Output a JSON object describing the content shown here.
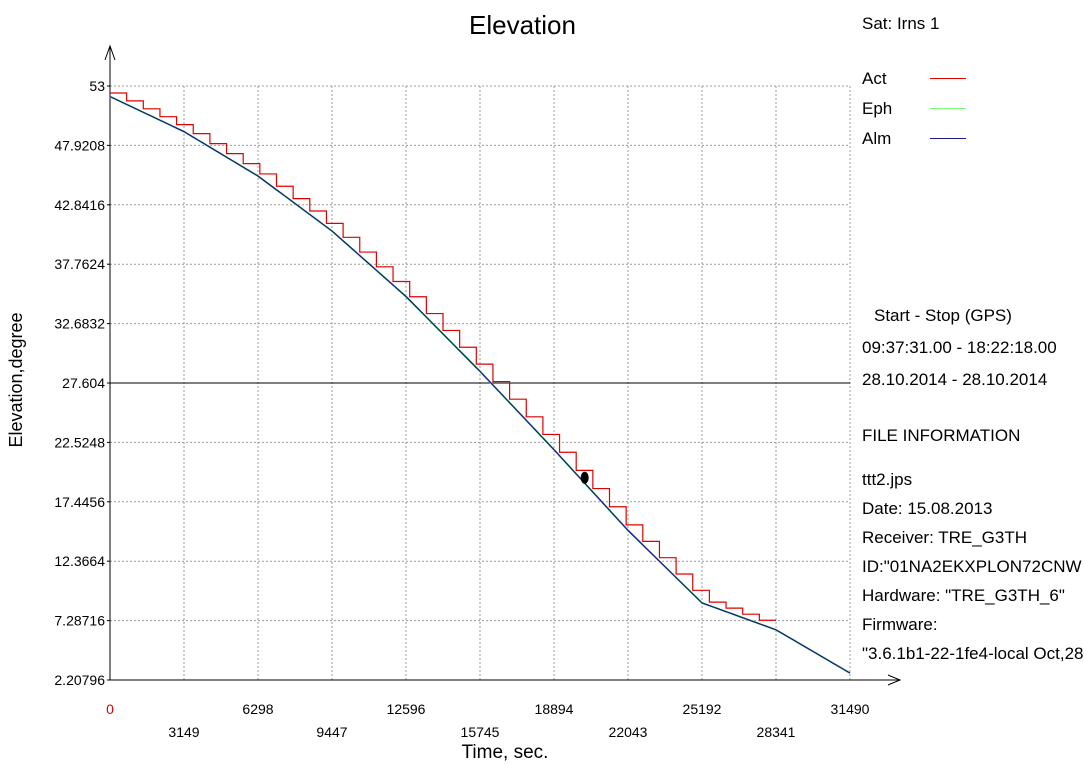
{
  "chart_data": {
    "type": "line",
    "title": "Elevation",
    "xlabel": "Time, sec.",
    "ylabel": "Elevation,degree",
    "xlim": [
      0,
      31490
    ],
    "ylim": [
      2.20796,
      53
    ],
    "grid": true,
    "legend_position": "top-right",
    "x_tick_labels": [
      "0",
      "3149",
      "6298",
      "9447",
      "12596",
      "15745",
      "18894",
      "22043",
      "25192",
      "28341",
      "31490"
    ],
    "y_tick_labels": [
      "53",
      "47.9208",
      "42.8416",
      "37.7624",
      "32.6832",
      "27.604",
      "22.5248",
      "17.4456",
      "12.3664",
      "7.28716",
      "2.20796"
    ],
    "series": [
      {
        "name": "Act",
        "color": "#e00000",
        "style": "step",
        "x": [
          0,
          28341
        ],
        "y": [
          52.3,
          7.2
        ]
      },
      {
        "name": "Eph",
        "color": "#7cff7c",
        "x": [
          0,
          3149,
          6298,
          9447,
          12596,
          15745,
          18894,
          22043,
          25192,
          28341,
          31490
        ],
        "y": [
          52.1,
          49.1,
          45.3,
          40.6,
          35.0,
          28.6,
          21.9,
          15.0,
          8.8,
          6.5,
          2.8
        ]
      },
      {
        "name": "Alm",
        "color": "#1a1a8c",
        "x": [
          0,
          3149,
          6298,
          9447,
          12596,
          15745,
          18894,
          22043,
          25192,
          28341,
          31490
        ],
        "y": [
          52.1,
          49.1,
          45.3,
          40.6,
          35.0,
          28.6,
          21.9,
          15.0,
          8.8,
          6.5,
          2.8
        ]
      }
    ],
    "marker": {
      "x": 20200,
      "y": 19.5
    }
  },
  "sat_label": "Sat: Irns   1",
  "legend": [
    {
      "label": "Act",
      "color": "#e00000"
    },
    {
      "label": "Eph",
      "color": "#7cff7c"
    },
    {
      "label": "Alm",
      "color": "#1a1a8c"
    }
  ],
  "start_stop": {
    "heading": "Start  -  Stop  (GPS)",
    "time_range": "09:37:31.00 - 18:22:18.00",
    "date_range": "28.10.2014 - 28.10.2014"
  },
  "file_info": {
    "heading": "FILE INFORMATION",
    "filename": "ttt2.jps",
    "date": "Date: 15.08.2013",
    "receiver": "Receiver: TRE_G3TH",
    "id": "ID:\"01NA2EKXPLON72CNW",
    "hardware": "Hardware: \"TRE_G3TH_6\"",
    "firmware_label": "Firmware:",
    "firmware_value": "\"3.6.1b1-22-1fe4-local Oct,28"
  }
}
